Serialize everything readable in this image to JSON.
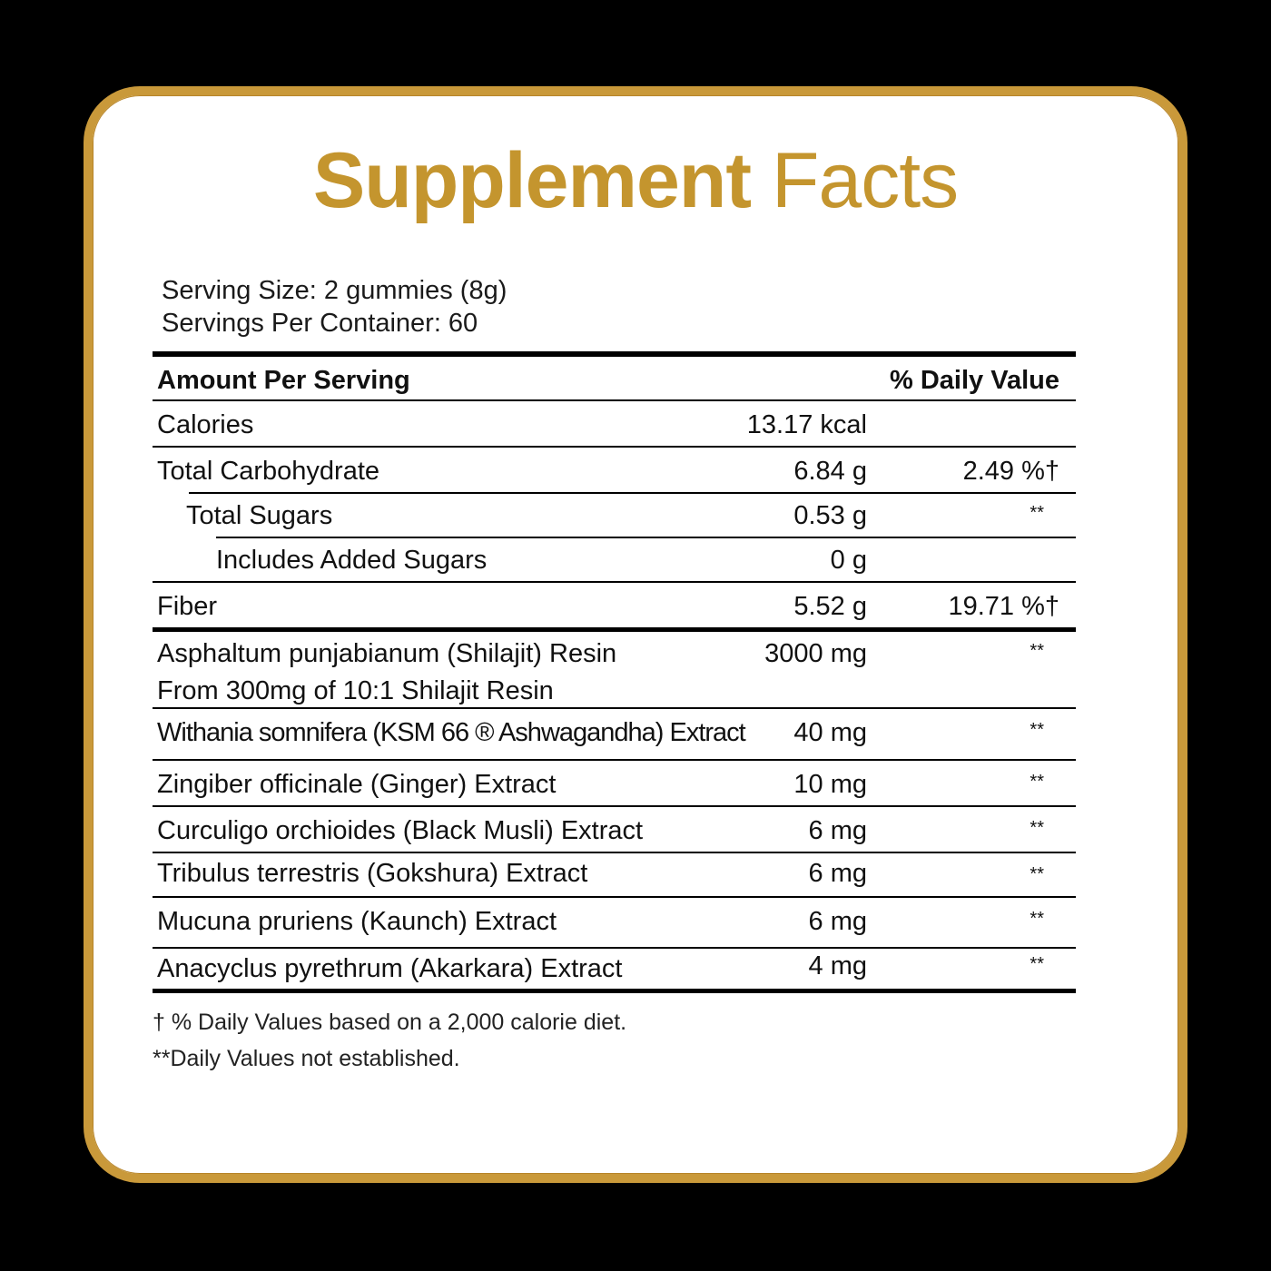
{
  "title": {
    "bold": "Supplement",
    "regular": "Facts"
  },
  "serving_size": "Serving Size: 2 gummies (8g)",
  "servings_per_container": "Servings Per Container: 60",
  "header": {
    "amount": "Amount Per Serving",
    "dv": "% Daily Value"
  },
  "rows": [
    {
      "name": "Calories",
      "amount": "13.17 kcal",
      "dv": ""
    },
    {
      "name": "Total Carbohydrate",
      "amount": "6.84 g",
      "dv": "2.49 %†"
    },
    {
      "name": "Total Sugars",
      "amount": "0.53 g",
      "dv": "**"
    },
    {
      "name": "Includes Added Sugars",
      "amount": "0 g",
      "dv": ""
    },
    {
      "name": "Fiber",
      "amount": "5.52 g",
      "dv": "19.71 %†"
    },
    {
      "name": "Asphaltum punjabianum  (Shilajit) Resin",
      "sub": "From 300mg of 10:1 Shilajit Resin",
      "amount": "3000 mg",
      "dv": "**"
    },
    {
      "name": "Withania somnifera (KSM 66 ® Ashwagandha) Extract",
      "amount": "40 mg",
      "dv": "**"
    },
    {
      "name": "Zingiber officinale (Ginger) Extract",
      "amount": "10 mg",
      "dv": "**"
    },
    {
      "name": "Curculigo orchioides (Black Musli) Extract",
      "amount": "6 mg",
      "dv": "**"
    },
    {
      "name": "Tribulus terrestris (Gokshura) Extract",
      "amount": "6 mg",
      "dv": "**"
    },
    {
      "name": "Mucuna pruriens (Kaunch) Extract",
      "amount": "6 mg",
      "dv": "**"
    },
    {
      "name": "Anacyclus pyrethrum (Akarkara) Extract",
      "amount": "4 mg",
      "dv": "**"
    }
  ],
  "footnotes": [
    "† % Daily Values based on a 2,000 calorie diet.",
    "**Daily Values not established."
  ],
  "colors": {
    "gold": "#c4952e",
    "background": "#000000",
    "card": "#ffffff"
  }
}
